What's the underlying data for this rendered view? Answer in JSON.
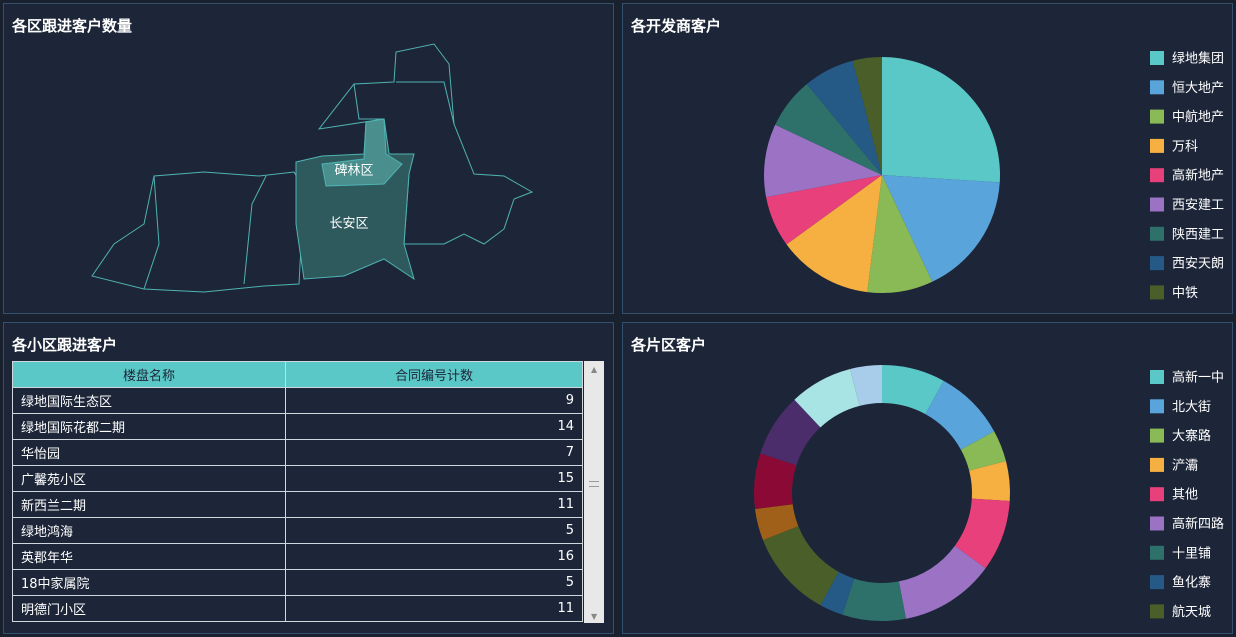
{
  "map_panel": {
    "title": "各区跟进客户数量",
    "labels": [
      "碑林区",
      "长安区"
    ]
  },
  "table_panel": {
    "title": "各小区跟进客户",
    "header": [
      "楼盘名称",
      "合同编号计数"
    ],
    "rows": [
      [
        "绿地国际生态区",
        9
      ],
      [
        "绿地国际花都二期",
        14
      ],
      [
        "华怡园",
        7
      ],
      [
        "广馨苑小区",
        15
      ],
      [
        "新西兰二期",
        11
      ],
      [
        "绿地鸿海",
        5
      ],
      [
        "英郡年华",
        16
      ],
      [
        "18中家属院",
        5
      ],
      [
        "明德门小区",
        11
      ]
    ]
  },
  "chart_data": [
    {
      "type": "pie",
      "title": "各开发商客户",
      "categories": [
        "绿地集团",
        "恒大地产",
        "中航地产",
        "万科",
        "高新地产",
        "西安建工",
        "陕西建工",
        "西安天朗",
        "中铁"
      ],
      "values": [
        26,
        17,
        9,
        13,
        7,
        10,
        7,
        7,
        4
      ],
      "colors": [
        "#5bc8c8",
        "#5aa4dc",
        "#8aba56",
        "#f5b041",
        "#e8407a",
        "#9b72c4",
        "#2e706a",
        "#265a86",
        "#4a5e2a"
      ]
    },
    {
      "type": "donut",
      "title": "各片区客户",
      "categories": [
        "高新一中",
        "北大街",
        "大寨路",
        "浐灞",
        "其他",
        "高新四路",
        "十里铺",
        "鱼化寨",
        "航天城",
        null,
        null,
        null,
        null,
        null
      ],
      "values": [
        8,
        9,
        4,
        5,
        9,
        12,
        8,
        3,
        11,
        4,
        7,
        8,
        8,
        4
      ],
      "colors": [
        "#5bc8c8",
        "#5aa4dc",
        "#8aba56",
        "#f5b041",
        "#e8407a",
        "#9b72c4",
        "#2e706a",
        "#265a86",
        "#4a5e2a",
        "#a0601a",
        "#8b0a35",
        "#4a2d6a",
        "#a8e4e4",
        "#a8cdeb"
      ]
    }
  ]
}
